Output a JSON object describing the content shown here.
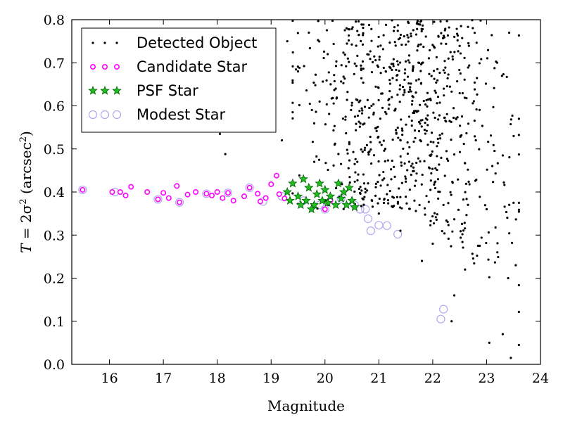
{
  "chart_data": {
    "type": "scatter",
    "xlabel": "Magnitude",
    "ylabel_parts": [
      "T",
      " = 2σ",
      "2",
      " (arcsec",
      "2",
      ")"
    ],
    "xlim": [
      15.3,
      24.0
    ],
    "ylim": [
      0.0,
      0.8
    ],
    "x_ticks": [
      16,
      17,
      18,
      19,
      20,
      21,
      22,
      23,
      24
    ],
    "y_ticks": [
      0.0,
      0.1,
      0.2,
      0.3,
      0.4,
      0.5,
      0.6,
      0.7,
      0.8
    ],
    "y_tick_labels": [
      "0.0",
      "0.1",
      "0.2",
      "0.3",
      "0.4",
      "0.5",
      "0.6",
      "0.7",
      "0.8"
    ],
    "grid": false,
    "legend_position": "top-left",
    "series": [
      {
        "name": "Detected Object",
        "marker": "dot",
        "color": "#000000",
        "points": [
          [
            18.05,
            0.535
          ],
          [
            18.15,
            0.488
          ],
          [
            19.05,
            0.56
          ],
          [
            19.2,
            0.52
          ],
          [
            19.3,
            0.75
          ],
          [
            19.5,
            0.68
          ],
          [
            19.7,
            0.77
          ],
          [
            19.9,
            0.61
          ],
          [
            20.05,
            0.72
          ],
          [
            20.2,
            0.64
          ],
          [
            20.4,
            0.78
          ],
          [
            20.6,
            0.47
          ],
          [
            20.8,
            0.42
          ],
          [
            20.9,
            0.58
          ],
          [
            21.0,
            0.35
          ],
          [
            21.2,
            0.66
          ],
          [
            21.4,
            0.31
          ],
          [
            21.6,
            0.44
          ],
          [
            21.8,
            0.24
          ],
          [
            22.0,
            0.28
          ],
          [
            22.2,
            0.37
          ],
          [
            22.35,
            0.1
          ],
          [
            22.4,
            0.16
          ],
          [
            22.6,
            0.22
          ],
          [
            22.8,
            0.52
          ],
          [
            23.0,
            0.36
          ],
          [
            23.05,
            0.05
          ],
          [
            23.2,
            0.26
          ],
          [
            23.3,
            0.07
          ],
          [
            23.4,
            0.2
          ],
          [
            23.45,
            0.015
          ],
          [
            23.5,
            0.375
          ],
          [
            23.6,
            0.045
          ],
          [
            23.3,
            0.485
          ]
        ],
        "dense_region": {
          "x_min": 19.4,
          "x_max": 23.6,
          "y_min": 0.0,
          "y_max": 0.8,
          "approx_count": 750,
          "x_center": 21.5
        }
      },
      {
        "name": "Candidate Star",
        "marker": "circle",
        "color": "#ff00ff",
        "points": [
          [
            15.5,
            0.405
          ],
          [
            16.05,
            0.4
          ],
          [
            16.2,
            0.4
          ],
          [
            16.3,
            0.392
          ],
          [
            16.4,
            0.412
          ],
          [
            16.7,
            0.4
          ],
          [
            16.9,
            0.383
          ],
          [
            17.0,
            0.398
          ],
          [
            17.1,
            0.386
          ],
          [
            17.25,
            0.414
          ],
          [
            17.3,
            0.376
          ],
          [
            17.45,
            0.394
          ],
          [
            17.6,
            0.4
          ],
          [
            17.8,
            0.396
          ],
          [
            17.9,
            0.392
          ],
          [
            18.0,
            0.4
          ],
          [
            18.1,
            0.386
          ],
          [
            18.2,
            0.398
          ],
          [
            18.3,
            0.38
          ],
          [
            18.5,
            0.39
          ],
          [
            18.6,
            0.41
          ],
          [
            18.75,
            0.396
          ],
          [
            18.8,
            0.378
          ],
          [
            18.9,
            0.386
          ],
          [
            19.0,
            0.418
          ],
          [
            19.1,
            0.438
          ],
          [
            19.15,
            0.395
          ],
          [
            19.25,
            0.385
          ],
          [
            20.0,
            0.36
          ],
          [
            20.1,
            0.38
          ]
        ]
      },
      {
        "name": "PSF Star",
        "marker": "star",
        "color": "#00aa00",
        "points": [
          [
            19.3,
            0.4
          ],
          [
            19.35,
            0.38
          ],
          [
            19.4,
            0.42
          ],
          [
            19.5,
            0.39
          ],
          [
            19.55,
            0.37
          ],
          [
            19.6,
            0.43
          ],
          [
            19.65,
            0.38
          ],
          [
            19.7,
            0.41
          ],
          [
            19.8,
            0.37
          ],
          [
            19.85,
            0.395
          ],
          [
            19.9,
            0.42
          ],
          [
            19.95,
            0.38
          ],
          [
            20.0,
            0.405
          ],
          [
            20.05,
            0.375
          ],
          [
            20.1,
            0.39
          ],
          [
            20.2,
            0.37
          ],
          [
            20.25,
            0.42
          ],
          [
            20.3,
            0.385
          ],
          [
            20.35,
            0.4
          ],
          [
            20.45,
            0.41
          ],
          [
            20.5,
            0.38
          ],
          [
            20.55,
            0.365
          ],
          [
            20.4,
            0.37
          ],
          [
            19.75,
            0.36
          ]
        ]
      },
      {
        "name": "Modest Star",
        "marker": "open-circle",
        "color": "#b0a8f0",
        "points": [
          [
            15.5,
            0.405
          ],
          [
            16.1,
            0.4
          ],
          [
            16.9,
            0.383
          ],
          [
            17.3,
            0.376
          ],
          [
            17.8,
            0.396
          ],
          [
            18.2,
            0.398
          ],
          [
            18.6,
            0.41
          ],
          [
            18.85,
            0.378
          ],
          [
            19.2,
            0.39
          ],
          [
            19.6,
            0.38
          ],
          [
            19.9,
            0.37
          ],
          [
            20.0,
            0.36
          ],
          [
            20.3,
            0.385
          ],
          [
            20.55,
            0.37
          ],
          [
            20.65,
            0.36
          ],
          [
            20.75,
            0.36
          ],
          [
            20.8,
            0.338
          ],
          [
            20.85,
            0.31
          ],
          [
            21.0,
            0.323
          ],
          [
            21.15,
            0.322
          ],
          [
            21.35,
            0.302
          ],
          [
            22.2,
            0.128
          ],
          [
            22.15,
            0.105
          ]
        ]
      }
    ]
  }
}
